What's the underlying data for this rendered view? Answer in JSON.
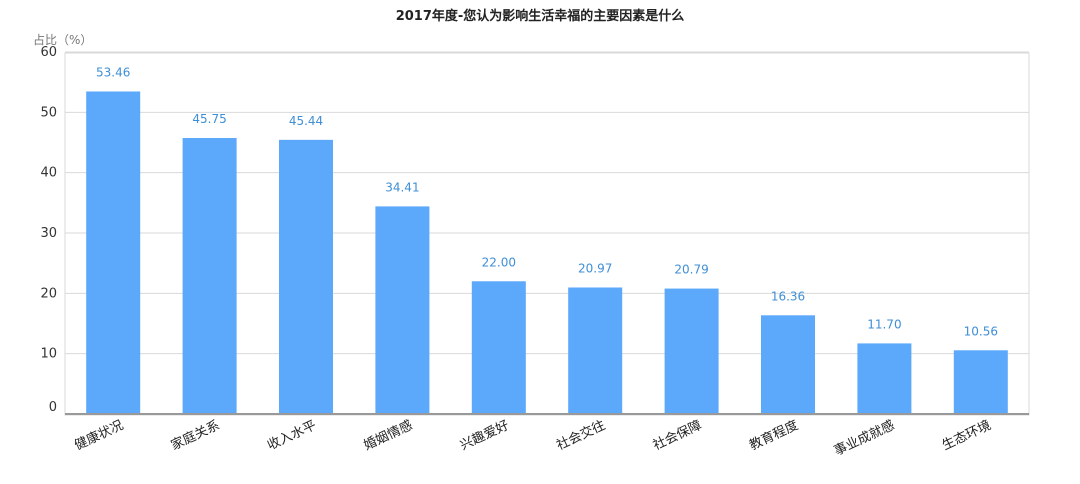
{
  "chart_data": {
    "type": "bar",
    "title": "2017年度-您认为影响生活幸福的主要因素是什么",
    "xlabel": "",
    "ylabel": "占比（%）",
    "categories": [
      "健康状况",
      "家庭关系",
      "收入水平",
      "婚姻情感",
      "兴趣爱好",
      "社会交往",
      "社会保障",
      "教育程度",
      "事业成就感",
      "生态环境"
    ],
    "values": [
      53.46,
      45.75,
      45.44,
      34.41,
      22.0,
      20.97,
      20.79,
      16.36,
      11.7,
      10.56
    ],
    "value_labels": [
      "53.46",
      "45.75",
      "45.44",
      "34.41",
      "22.00",
      "20.97",
      "20.79",
      "16.36",
      "11.70",
      "10.56"
    ],
    "yticks": [
      0,
      10,
      20,
      30,
      40,
      50,
      60
    ],
    "ylim": [
      0,
      60
    ],
    "grid": true,
    "legend": "none",
    "colors": {
      "bar": "#5ca8fb",
      "value_label": "#3f8fd6",
      "grid": "#d9d9d9",
      "axis": "#999999"
    }
  }
}
